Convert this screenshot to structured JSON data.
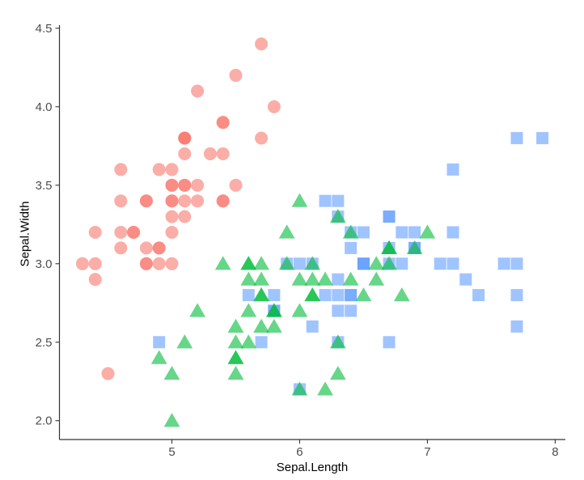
{
  "chart_data": {
    "type": "scatter",
    "title": "",
    "xlabel": "Sepal.Length",
    "ylabel": "Sepal.Width",
    "xlim": [
      4.12,
      8.08
    ],
    "ylim": [
      1.88,
      4.52
    ],
    "xticks": {
      "values": [
        5,
        6,
        7,
        8
      ],
      "labels": [
        "5",
        "6",
        "7",
        "8"
      ]
    },
    "yticks": {
      "values": [
        2.0,
        2.5,
        3.0,
        3.5,
        4.0,
        4.5
      ],
      "labels": [
        "2.0",
        "2.5",
        "3.0",
        "3.5",
        "4.0",
        "4.5"
      ]
    },
    "grid": false,
    "legend_position": "none",
    "background": "#FFFFFF",
    "axis_line_color": "#333333",
    "tick_mark_color": "#333333",
    "tick_label_color": "#4D4D4D",
    "axis_title_color": "#000000",
    "marker_opacity": 0.6,
    "series": [
      {
        "name": "red-circles",
        "shape": "circle",
        "color": "#F8766D",
        "points": [
          [
            5.1,
            3.5
          ],
          [
            4.9,
            3.0
          ],
          [
            4.7,
            3.2
          ],
          [
            4.6,
            3.1
          ],
          [
            5.0,
            3.6
          ],
          [
            5.4,
            3.9
          ],
          [
            4.6,
            3.4
          ],
          [
            5.0,
            3.4
          ],
          [
            4.4,
            2.9
          ],
          [
            4.9,
            3.1
          ],
          [
            5.4,
            3.7
          ],
          [
            4.8,
            3.4
          ],
          [
            4.8,
            3.0
          ],
          [
            4.3,
            3.0
          ],
          [
            5.8,
            4.0
          ],
          [
            5.7,
            4.4
          ],
          [
            5.4,
            3.9
          ],
          [
            5.1,
            3.5
          ],
          [
            5.7,
            3.8
          ],
          [
            5.1,
            3.8
          ],
          [
            5.4,
            3.4
          ],
          [
            5.1,
            3.7
          ],
          [
            4.6,
            3.6
          ],
          [
            5.1,
            3.3
          ],
          [
            4.8,
            3.4
          ],
          [
            5.0,
            3.0
          ],
          [
            5.0,
            3.4
          ],
          [
            5.2,
            3.5
          ],
          [
            5.2,
            3.4
          ],
          [
            4.7,
            3.2
          ],
          [
            4.8,
            3.1
          ],
          [
            5.4,
            3.4
          ],
          [
            5.2,
            4.1
          ],
          [
            5.5,
            4.2
          ],
          [
            4.9,
            3.1
          ],
          [
            5.0,
            3.2
          ],
          [
            5.5,
            3.5
          ],
          [
            4.9,
            3.6
          ],
          [
            4.4,
            3.0
          ],
          [
            5.1,
            3.4
          ],
          [
            5.0,
            3.5
          ],
          [
            4.5,
            2.3
          ],
          [
            4.4,
            3.2
          ],
          [
            5.0,
            3.5
          ],
          [
            5.1,
            3.8
          ],
          [
            4.8,
            3.0
          ],
          [
            5.1,
            3.8
          ],
          [
            4.6,
            3.2
          ],
          [
            5.3,
            3.7
          ],
          [
            5.0,
            3.3
          ]
        ]
      },
      {
        "name": "blue-squares",
        "shape": "square",
        "color": "#619CFF",
        "points": [
          [
            6.3,
            3.3
          ],
          [
            5.8,
            2.7
          ],
          [
            7.1,
            3.0
          ],
          [
            6.3,
            2.9
          ],
          [
            6.5,
            3.0
          ],
          [
            7.6,
            3.0
          ],
          [
            4.9,
            2.5
          ],
          [
            7.3,
            2.9
          ],
          [
            6.7,
            2.5
          ],
          [
            7.2,
            3.6
          ],
          [
            6.5,
            3.2
          ],
          [
            6.4,
            2.7
          ],
          [
            6.8,
            3.0
          ],
          [
            5.7,
            2.5
          ],
          [
            5.8,
            2.8
          ],
          [
            6.4,
            3.2
          ],
          [
            6.5,
            3.0
          ],
          [
            7.7,
            3.8
          ],
          [
            7.7,
            2.6
          ],
          [
            6.0,
            2.2
          ],
          [
            6.9,
            3.2
          ],
          [
            5.6,
            2.8
          ],
          [
            7.7,
            2.8
          ],
          [
            6.3,
            2.7
          ],
          [
            6.7,
            3.3
          ],
          [
            7.2,
            3.2
          ],
          [
            6.2,
            2.8
          ],
          [
            6.1,
            3.0
          ],
          [
            6.4,
            2.8
          ],
          [
            7.2,
            3.0
          ],
          [
            7.4,
            2.8
          ],
          [
            7.9,
            3.8
          ],
          [
            6.4,
            2.8
          ],
          [
            6.3,
            2.8
          ],
          [
            6.1,
            2.6
          ],
          [
            7.7,
            3.0
          ],
          [
            6.3,
            3.4
          ],
          [
            6.4,
            3.1
          ],
          [
            6.0,
            3.0
          ],
          [
            6.9,
            3.1
          ],
          [
            6.7,
            3.1
          ],
          [
            6.9,
            3.1
          ],
          [
            5.8,
            2.7
          ],
          [
            6.8,
            3.2
          ],
          [
            6.7,
            3.3
          ],
          [
            6.7,
            3.0
          ],
          [
            6.3,
            2.5
          ],
          [
            6.5,
            3.0
          ],
          [
            6.2,
            3.4
          ],
          [
            5.9,
            3.0
          ]
        ]
      },
      {
        "name": "green-triangles",
        "shape": "triangle",
        "color": "#00BA38",
        "points": [
          [
            7.0,
            3.2
          ],
          [
            6.4,
            3.2
          ],
          [
            6.9,
            3.1
          ],
          [
            5.5,
            2.3
          ],
          [
            6.5,
            2.8
          ],
          [
            5.7,
            2.8
          ],
          [
            6.3,
            3.3
          ],
          [
            4.9,
            2.4
          ],
          [
            6.6,
            2.9
          ],
          [
            5.2,
            2.7
          ],
          [
            5.0,
            2.0
          ],
          [
            5.9,
            3.0
          ],
          [
            6.0,
            2.2
          ],
          [
            6.1,
            2.9
          ],
          [
            5.6,
            2.9
          ],
          [
            6.7,
            3.1
          ],
          [
            5.6,
            3.0
          ],
          [
            5.8,
            2.7
          ],
          [
            6.2,
            2.2
          ],
          [
            5.6,
            2.5
          ],
          [
            5.9,
            3.2
          ],
          [
            6.1,
            2.8
          ],
          [
            6.3,
            2.5
          ],
          [
            6.1,
            2.8
          ],
          [
            6.4,
            2.9
          ],
          [
            6.6,
            3.0
          ],
          [
            6.8,
            2.8
          ],
          [
            6.7,
            3.0
          ],
          [
            6.0,
            2.9
          ],
          [
            5.7,
            2.6
          ],
          [
            5.5,
            2.4
          ],
          [
            5.5,
            2.4
          ],
          [
            5.8,
            2.7
          ],
          [
            6.0,
            2.7
          ],
          [
            5.4,
            3.0
          ],
          [
            6.0,
            3.4
          ],
          [
            6.7,
            3.1
          ],
          [
            6.3,
            2.3
          ],
          [
            5.6,
            3.0
          ],
          [
            5.5,
            2.5
          ],
          [
            5.5,
            2.6
          ],
          [
            6.1,
            3.0
          ],
          [
            5.8,
            2.6
          ],
          [
            5.0,
            2.3
          ],
          [
            5.6,
            2.7
          ],
          [
            5.7,
            3.0
          ],
          [
            5.7,
            2.9
          ],
          [
            6.2,
            2.9
          ],
          [
            5.1,
            2.5
          ],
          [
            5.7,
            2.8
          ]
        ]
      }
    ]
  }
}
